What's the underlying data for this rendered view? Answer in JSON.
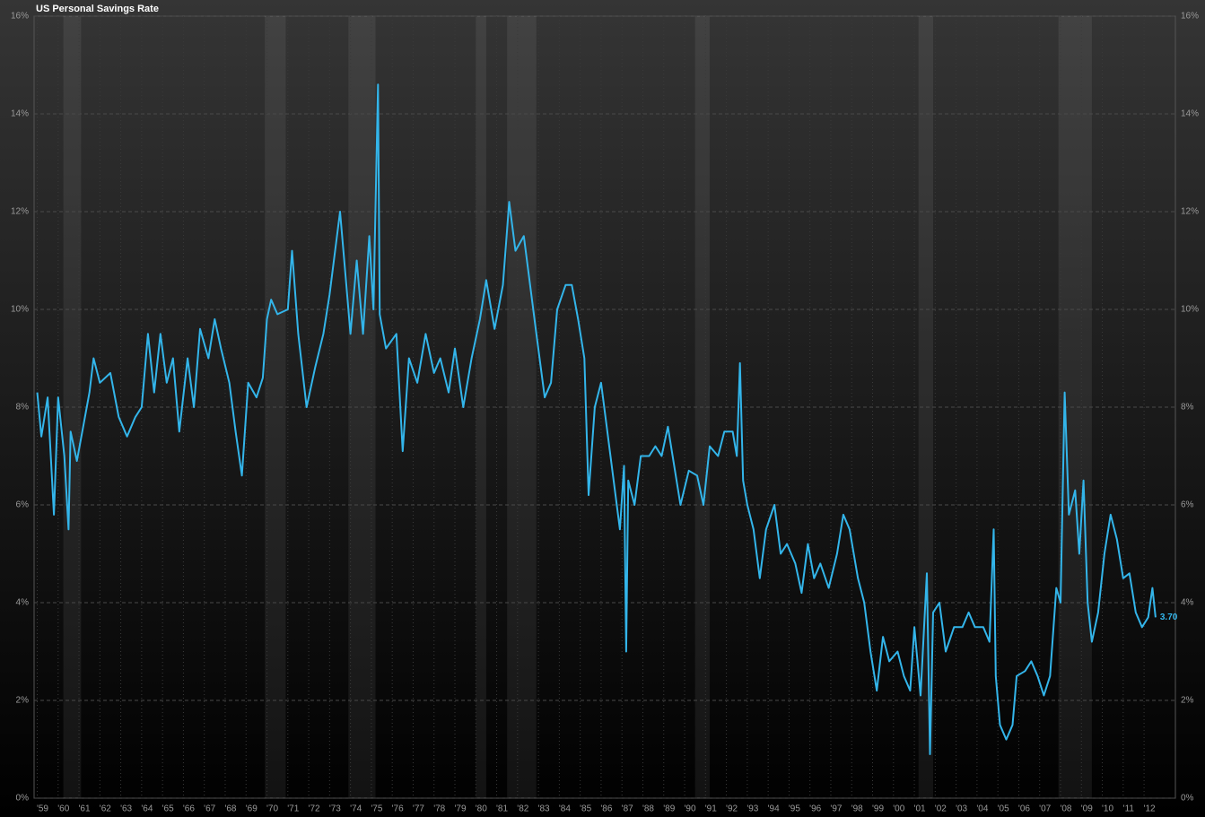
{
  "chart_data": {
    "type": "line",
    "title": "US Personal Savings Rate",
    "x": [
      1959.0,
      1959.2,
      1959.5,
      1959.8,
      1960.0,
      1960.3,
      1960.5,
      1960.6,
      1960.9,
      1961.2,
      1961.5,
      1961.7,
      1962.0,
      1962.5,
      1962.9,
      1963.3,
      1963.7,
      1964.0,
      1964.3,
      1964.6,
      1964.9,
      1965.2,
      1965.5,
      1965.8,
      1966.2,
      1966.5,
      1966.8,
      1967.2,
      1967.5,
      1967.8,
      1968.2,
      1968.5,
      1968.8,
      1969.1,
      1969.5,
      1969.8,
      1970.0,
      1970.2,
      1970.5,
      1971.0,
      1971.2,
      1971.5,
      1971.9,
      1972.3,
      1972.7,
      1973.0,
      1973.5,
      1973.8,
      1974.0,
      1974.3,
      1974.6,
      1974.9,
      1975.1,
      1975.32,
      1975.4,
      1975.7,
      1976.2,
      1976.5,
      1976.8,
      1977.2,
      1977.6,
      1978.0,
      1978.3,
      1978.7,
      1979.0,
      1979.4,
      1979.8,
      1980.2,
      1980.5,
      1980.9,
      1981.3,
      1981.6,
      1981.9,
      1982.3,
      1982.6,
      1982.9,
      1983.3,
      1983.6,
      1983.9,
      1984.3,
      1984.6,
      1984.9,
      1985.2,
      1985.4,
      1985.7,
      1986.0,
      1986.3,
      1986.6,
      1986.9,
      1987.1,
      1987.2,
      1987.3,
      1987.6,
      1987.9,
      1988.3,
      1988.6,
      1988.9,
      1989.2,
      1989.5,
      1989.8,
      1990.2,
      1990.6,
      1990.9,
      1991.2,
      1991.6,
      1991.9,
      1992.3,
      1992.5,
      1992.65,
      1992.8,
      1993.0,
      1993.3,
      1993.6,
      1993.9,
      1994.3,
      1994.6,
      1994.9,
      1995.3,
      1995.6,
      1995.9,
      1996.2,
      1996.5,
      1996.9,
      1997.3,
      1997.6,
      1997.9,
      1998.3,
      1998.6,
      1998.9,
      1999.2,
      1999.5,
      1999.8,
      2000.2,
      2000.5,
      2000.8,
      2001.0,
      2001.3,
      2001.6,
      2001.75,
      2001.9,
      2002.2,
      2002.5,
      2002.9,
      2003.3,
      2003.6,
      2003.9,
      2004.3,
      2004.6,
      2004.8,
      2004.9,
      2005.1,
      2005.4,
      2005.7,
      2005.9,
      2006.3,
      2006.6,
      2006.9,
      2007.2,
      2007.5,
      2007.8,
      2008.0,
      2008.2,
      2008.4,
      2008.7,
      2008.9,
      2009.1,
      2009.3,
      2009.5,
      2009.8,
      2010.1,
      2010.4,
      2010.7,
      2011.0,
      2011.3,
      2011.6,
      2011.9,
      2012.2,
      2012.4,
      2012.55
    ],
    "series": [
      {
        "name": "US Personal Savings Rate",
        "color": "#33b5ea",
        "values": [
          8.3,
          7.4,
          8.2,
          5.8,
          8.2,
          7.0,
          5.5,
          7.5,
          6.9,
          7.6,
          8.3,
          9.0,
          8.5,
          8.7,
          7.8,
          7.4,
          7.8,
          8.0,
          9.5,
          8.3,
          9.5,
          8.5,
          9.0,
          7.5,
          9.0,
          8.0,
          9.6,
          9.0,
          9.8,
          9.2,
          8.5,
          7.5,
          6.6,
          8.5,
          8.2,
          8.6,
          9.8,
          10.2,
          9.9,
          10.0,
          11.2,
          9.5,
          8.0,
          8.8,
          9.5,
          10.3,
          12.0,
          10.5,
          9.5,
          11.0,
          9.5,
          11.5,
          10.0,
          14.6,
          9.9,
          9.2,
          9.5,
          7.1,
          9.0,
          8.5,
          9.5,
          8.7,
          9.0,
          8.3,
          9.2,
          8.0,
          9.0,
          9.8,
          10.6,
          9.6,
          10.5,
          12.2,
          11.2,
          11.5,
          10.5,
          9.5,
          8.2,
          8.5,
          10.0,
          10.5,
          10.5,
          9.8,
          9.0,
          6.2,
          8.0,
          8.5,
          7.5,
          6.5,
          5.5,
          6.8,
          3.0,
          6.5,
          6.0,
          7.0,
          7.0,
          7.2,
          7.0,
          7.6,
          6.8,
          6.0,
          6.7,
          6.6,
          6.0,
          7.2,
          7.0,
          7.5,
          7.5,
          7.0,
          8.9,
          6.5,
          6.0,
          5.5,
          4.5,
          5.5,
          6.0,
          5.0,
          5.2,
          4.8,
          4.2,
          5.2,
          4.5,
          4.8,
          4.3,
          5.0,
          5.8,
          5.5,
          4.5,
          4.0,
          3.0,
          2.2,
          3.3,
          2.8,
          3.0,
          2.5,
          2.2,
          3.5,
          2.1,
          4.6,
          0.9,
          3.8,
          4.0,
          3.0,
          3.5,
          3.5,
          3.8,
          3.5,
          3.5,
          3.2,
          5.5,
          2.5,
          1.5,
          1.2,
          1.5,
          2.5,
          2.6,
          2.8,
          2.5,
          2.1,
          2.5,
          4.3,
          4.0,
          8.3,
          5.8,
          6.3,
          5.0,
          6.5,
          4.0,
          3.2,
          3.8,
          5.0,
          5.8,
          5.3,
          4.5,
          4.6,
          3.8,
          3.5,
          3.7,
          4.3,
          3.7
        ],
        "last_value_label": "3.70"
      }
    ],
    "recessions": [
      [
        1960.25,
        1961.1
      ],
      [
        1969.9,
        1970.9
      ],
      [
        1973.9,
        1975.2
      ],
      [
        1980.0,
        1980.5
      ],
      [
        1981.5,
        1982.9
      ],
      [
        1990.5,
        1991.2
      ],
      [
        2001.2,
        2001.9
      ],
      [
        2007.9,
        2009.5
      ]
    ],
    "xlim": [
      1958.85,
      2013.5
    ],
    "xticks": [
      {
        "value": 1959,
        "label": "'59"
      },
      {
        "value": 1960,
        "label": "'60"
      },
      {
        "value": 1961,
        "label": "'61"
      },
      {
        "value": 1962,
        "label": "'62"
      },
      {
        "value": 1963,
        "label": "'63"
      },
      {
        "value": 1964,
        "label": "'64"
      },
      {
        "value": 1965,
        "label": "'65"
      },
      {
        "value": 1966,
        "label": "'66"
      },
      {
        "value": 1967,
        "label": "'67"
      },
      {
        "value": 1968,
        "label": "'68"
      },
      {
        "value": 1969,
        "label": "'69"
      },
      {
        "value": 1970,
        "label": "'70"
      },
      {
        "value": 1971,
        "label": "'71"
      },
      {
        "value": 1972,
        "label": "'72"
      },
      {
        "value": 1973,
        "label": "'73"
      },
      {
        "value": 1974,
        "label": "'74"
      },
      {
        "value": 1975,
        "label": "'75"
      },
      {
        "value": 1976,
        "label": "'76"
      },
      {
        "value": 1977,
        "label": "'77"
      },
      {
        "value": 1978,
        "label": "'78"
      },
      {
        "value": 1979,
        "label": "'79"
      },
      {
        "value": 1980,
        "label": "'80"
      },
      {
        "value": 1981,
        "label": "'81"
      },
      {
        "value": 1982,
        "label": "'82"
      },
      {
        "value": 1983,
        "label": "'83"
      },
      {
        "value": 1984,
        "label": "'84"
      },
      {
        "value": 1985,
        "label": "'85"
      },
      {
        "value": 1986,
        "label": "'86"
      },
      {
        "value": 1987,
        "label": "'87"
      },
      {
        "value": 1988,
        "label": "'88"
      },
      {
        "value": 1989,
        "label": "'89"
      },
      {
        "value": 1990,
        "label": "'90"
      },
      {
        "value": 1991,
        "label": "'91"
      },
      {
        "value": 1992,
        "label": "'92"
      },
      {
        "value": 1993,
        "label": "'93"
      },
      {
        "value": 1994,
        "label": "'94"
      },
      {
        "value": 1995,
        "label": "'95"
      },
      {
        "value": 1996,
        "label": "'96"
      },
      {
        "value": 1997,
        "label": "'97"
      },
      {
        "value": 1998,
        "label": "'98"
      },
      {
        "value": 1999,
        "label": "'99"
      },
      {
        "value": 2000,
        "label": "'00"
      },
      {
        "value": 2001,
        "label": "'01"
      },
      {
        "value": 2002,
        "label": "'02"
      },
      {
        "value": 2003,
        "label": "'03"
      },
      {
        "value": 2004,
        "label": "'04"
      },
      {
        "value": 2005,
        "label": "'05"
      },
      {
        "value": 2006,
        "label": "'06"
      },
      {
        "value": 2007,
        "label": "'07"
      },
      {
        "value": 2008,
        "label": "'08"
      },
      {
        "value": 2009,
        "label": "'09"
      },
      {
        "value": 2010,
        "label": "'10"
      },
      {
        "value": 2011,
        "label": "'11"
      },
      {
        "value": 2012,
        "label": "'12"
      }
    ],
    "ylim": [
      0,
      16
    ],
    "yticks": [
      {
        "value": 0,
        "label": "0%"
      },
      {
        "value": 2,
        "label": "2%"
      },
      {
        "value": 4,
        "label": "4%"
      },
      {
        "value": 6,
        "label": "6%"
      },
      {
        "value": 8,
        "label": "8%"
      },
      {
        "value": 10,
        "label": "10%"
      },
      {
        "value": 12,
        "label": "12%"
      },
      {
        "value": 14,
        "label": "14%"
      },
      {
        "value": 16,
        "label": "16%"
      }
    ],
    "grid": true
  }
}
